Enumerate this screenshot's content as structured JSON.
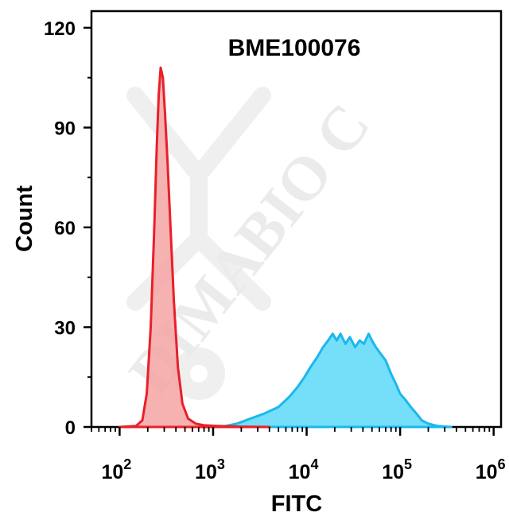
{
  "chart_data": {
    "type": "area",
    "title": "BME100076",
    "xlabel": "FITC",
    "ylabel": "Count",
    "x_scale": "log",
    "xlim": [
      50,
      1200000
    ],
    "ylim": [
      0,
      125
    ],
    "y_ticks": [
      0,
      30,
      60,
      90,
      120
    ],
    "x_ticks": [
      100,
      1000,
      10000,
      100000,
      1000000
    ],
    "x_tick_labels": [
      {
        "base": "10",
        "exp": "2"
      },
      {
        "base": "10",
        "exp": "3"
      },
      {
        "base": "10",
        "exp": "4"
      },
      {
        "base": "10",
        "exp": "5"
      },
      {
        "base": "10",
        "exp": "6"
      }
    ],
    "grid": false,
    "legend": "none",
    "series": [
      {
        "color_fill": "#f5a3a3",
        "color_line": "#e8202a",
        "points": [
          [
            100,
            0
          ],
          [
            150,
            0.3
          ],
          [
            175,
            2
          ],
          [
            195,
            10
          ],
          [
            215,
            30
          ],
          [
            235,
            60
          ],
          [
            250,
            85
          ],
          [
            262,
            100
          ],
          [
            275,
            108
          ],
          [
            290,
            105
          ],
          [
            305,
            95
          ],
          [
            325,
            80
          ],
          [
            350,
            60
          ],
          [
            380,
            38
          ],
          [
            420,
            18
          ],
          [
            470,
            7
          ],
          [
            540,
            2.5
          ],
          [
            650,
            1
          ],
          [
            800,
            0.5
          ],
          [
            1100,
            0.3
          ],
          [
            2000,
            0.1
          ],
          [
            4000,
            0
          ]
        ]
      },
      {
        "color_fill": "#5dd8f8",
        "color_line": "#1ab8ec",
        "points": [
          [
            1200,
            0
          ],
          [
            1800,
            1
          ],
          [
            2500,
            2.5
          ],
          [
            3500,
            4
          ],
          [
            5000,
            6
          ],
          [
            6500,
            9
          ],
          [
            8000,
            12
          ],
          [
            9500,
            15
          ],
          [
            11000,
            18
          ],
          [
            13000,
            21
          ],
          [
            15000,
            24
          ],
          [
            17000,
            26
          ],
          [
            19000,
            28
          ],
          [
            21000,
            26
          ],
          [
            23000,
            28
          ],
          [
            26000,
            25
          ],
          [
            29000,
            27
          ],
          [
            33000,
            24
          ],
          [
            37000,
            26
          ],
          [
            41000,
            25
          ],
          [
            46000,
            28
          ],
          [
            50000,
            26
          ],
          [
            55000,
            24
          ],
          [
            62000,
            22
          ],
          [
            70000,
            20
          ],
          [
            80000,
            16
          ],
          [
            90000,
            13
          ],
          [
            100000,
            10
          ],
          [
            115000,
            8
          ],
          [
            130000,
            6
          ],
          [
            150000,
            4
          ],
          [
            170000,
            2
          ],
          [
            200000,
            1
          ],
          [
            250000,
            0.3
          ],
          [
            350000,
            0
          ]
        ]
      }
    ]
  },
  "watermark": "DIMABIO C",
  "colors": {
    "axis": "#000000",
    "watermark": "#dedede"
  }
}
